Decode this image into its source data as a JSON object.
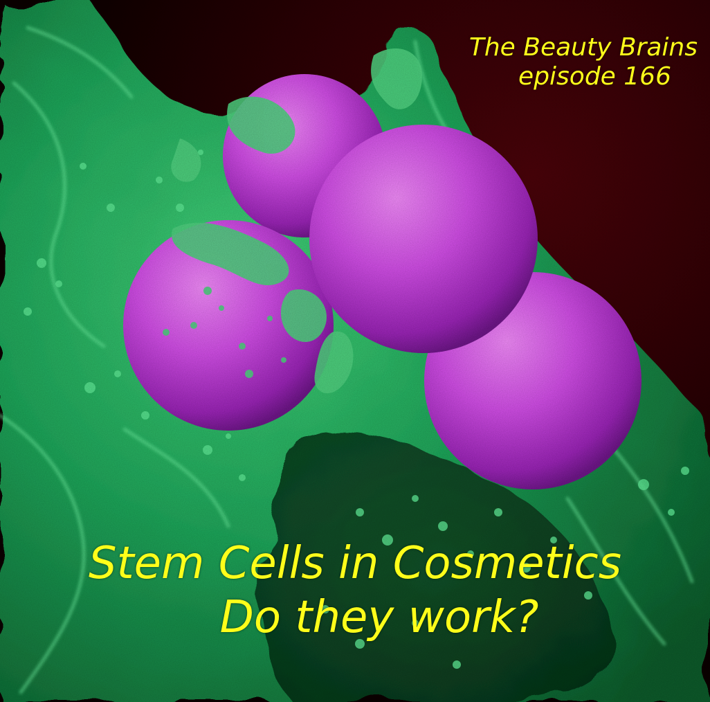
{
  "header": {
    "show_name": "The Beauty Brains",
    "episode": "episode 166"
  },
  "headline": {
    "line1": "Stem Cells in Cosmetics",
    "line2": "Do they work?"
  },
  "colors": {
    "text": "#ffff1a",
    "background": "#3a0206",
    "cell_surface": "#1fb35c",
    "spheres": "#d454e8"
  },
  "image": {
    "description_icon": "microscopy-image"
  }
}
